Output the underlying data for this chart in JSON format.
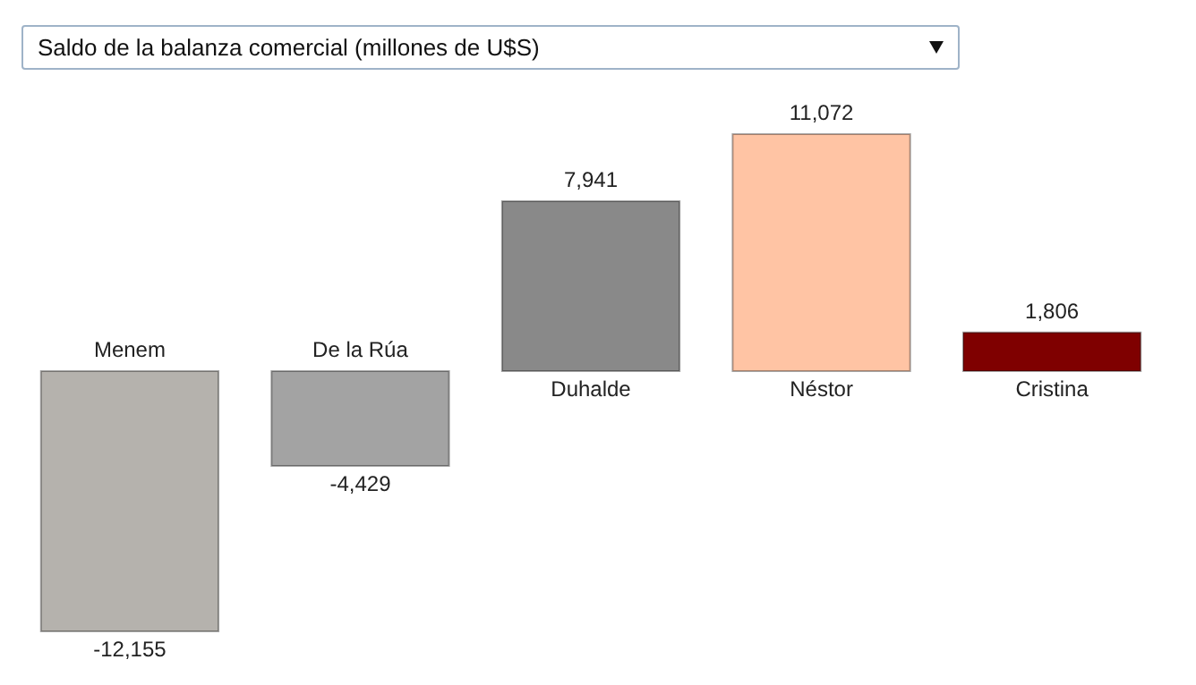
{
  "chart_data": {
    "type": "bar",
    "title": "Saldo de la balanza comercial (millones de U$S)",
    "categories": [
      "Menem",
      "De la Rúa",
      "Duhalde",
      "Néstor",
      "Cristina"
    ],
    "values": [
      -12155,
      -4429,
      7941,
      11072,
      1806
    ],
    "colors": [
      "#b5b2ad",
      "#a3a3a3",
      "#898989",
      "#ffc4a4",
      "#7f0000"
    ],
    "value_labels": [
      "-12,155",
      "-4,429",
      "7,941",
      "11,072",
      "1,806"
    ]
  }
}
